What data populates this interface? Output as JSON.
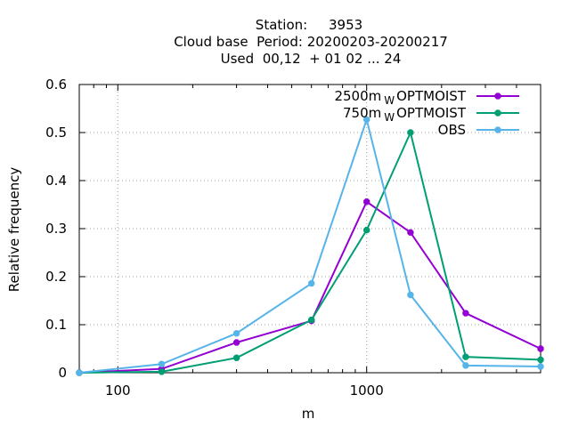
{
  "chart_data": {
    "type": "line",
    "title_lines": [
      "Station:     3953",
      "Cloud base  Period: 20200203-20200217",
      "Used  00,12  + 01 02 ... 24"
    ],
    "xlabel": "m",
    "ylabel": "Relative frequency",
    "x_scale": "log",
    "xlim": [
      70,
      5000
    ],
    "ylim": [
      0,
      0.6
    ],
    "x_ticks": [
      100,
      1000
    ],
    "x_tick_labels": [
      "100",
      "1000"
    ],
    "y_ticks": [
      0,
      0.1,
      0.2,
      0.3,
      0.4,
      0.5,
      0.6
    ],
    "y_tick_labels": [
      "0",
      "0.1",
      "0.2",
      "0.3",
      "0.4",
      "0.5",
      "0.6"
    ],
    "grid": true,
    "legend_position": "top-right",
    "series": [
      {
        "name": "2500m",
        "name_subscript": "W",
        "name_suffix": "OPTMOIST",
        "color": "#9400d3",
        "x": [
          70,
          150,
          300,
          600,
          1000,
          1500,
          2500,
          5000
        ],
        "y": [
          0.0,
          0.008,
          0.063,
          0.108,
          0.356,
          0.292,
          0.124,
          0.05
        ]
      },
      {
        "name": "750m",
        "name_subscript": "W",
        "name_suffix": "OPTMOIST",
        "color": "#009e73",
        "x": [
          70,
          150,
          300,
          600,
          1000,
          1500,
          2500,
          5000
        ],
        "y": [
          0.0,
          0.002,
          0.031,
          0.11,
          0.297,
          0.5,
          0.033,
          0.027
        ]
      },
      {
        "name": "OBS",
        "name_subscript": "",
        "name_suffix": "",
        "color": "#56b4e9",
        "x": [
          70,
          150,
          300,
          600,
          1000,
          1500,
          2500,
          5000
        ],
        "y": [
          0.0,
          0.018,
          0.082,
          0.186,
          0.527,
          0.162,
          0.015,
          0.013
        ]
      }
    ]
  }
}
